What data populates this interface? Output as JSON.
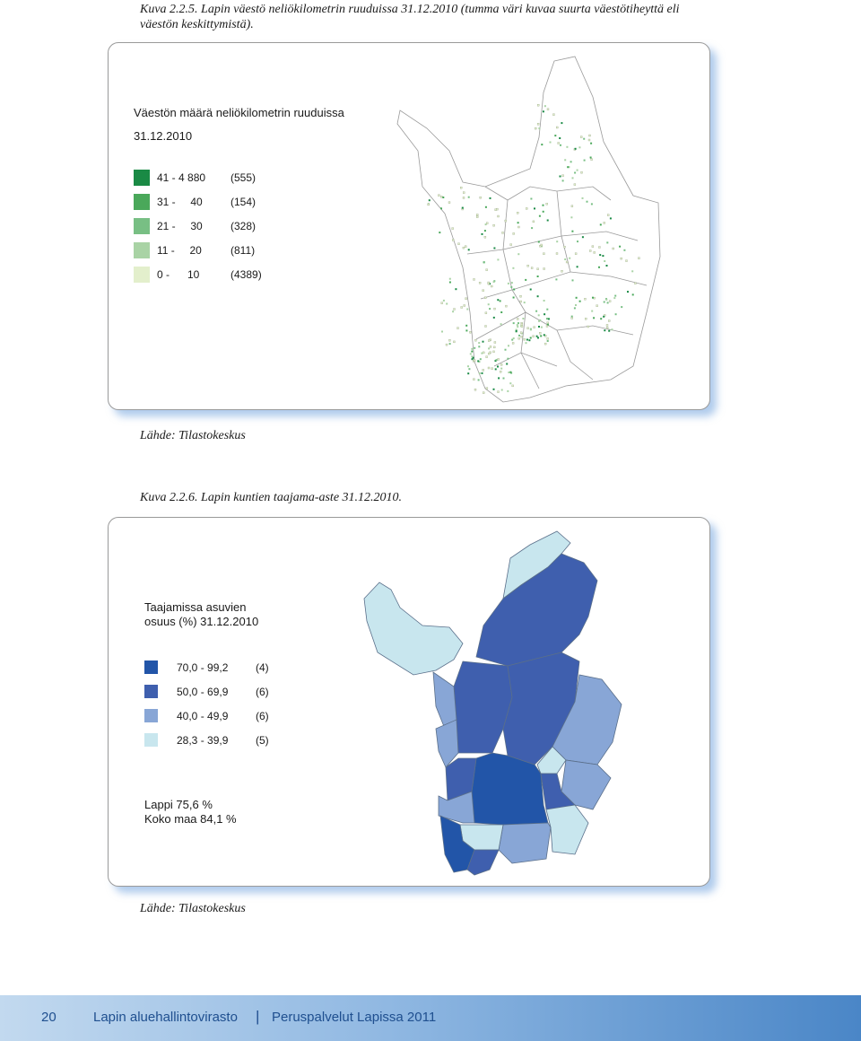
{
  "figure1": {
    "caption_line1": "Kuva 2.2.5. Lapin väestö neliökilometrin ruuduissa 31.12.2010 (tumma väri kuvaa suurta väestötiheyttä eli",
    "caption_line2": "väestön keskittymistä).",
    "legend_title_line1": "Väestön määrä neliökilometrin ruuduissa",
    "legend_title_line2": "31.12.2010",
    "classes": [
      {
        "range": "41 - 4 880",
        "count": "(555)",
        "color": "#1a8a45"
      },
      {
        "range": "31 -     40",
        "count": "(154)",
        "color": "#4aa85a"
      },
      {
        "range": "21 -     30",
        "count": "(328)",
        "color": "#78bf84"
      },
      {
        "range": "11 -     20",
        "count": "(811)",
        "color": "#a9d3a5"
      },
      {
        "range": "0 -      10",
        "count": "(4389)",
        "color": "#e3efcc"
      }
    ],
    "source": "Lähde: Tilastokeskus"
  },
  "figure2": {
    "caption": "Kuva 2.2.6. Lapin kuntien taajama-aste 31.12.2010.",
    "legend_title_line1": "Taajamissa asuvien",
    "legend_title_line2": "osuus (%) 31.12.2010",
    "classes": [
      {
        "range": "70,0 - 99,2",
        "count": "(4)",
        "color": "#2255a8"
      },
      {
        "range": "50,0 - 69,9",
        "count": "(6)",
        "color": "#3f5fae"
      },
      {
        "range": "40,0 - 49,9",
        "count": "(6)",
        "color": "#88a6d6"
      },
      {
        "range": "28,3 - 39,9",
        "count": "(5)",
        "color": "#c8e6ee"
      }
    ],
    "stat_lappi": "Lappi 75,6 %",
    "stat_finland": "Koko maa 84,1 %",
    "source": "Lähde: Tilastokeskus"
  },
  "footer": {
    "page_number": "20",
    "organization": "Lapin aluehallintovirasto",
    "separator": "|",
    "publication": "Peruspalvelut Lapissa 2011"
  }
}
